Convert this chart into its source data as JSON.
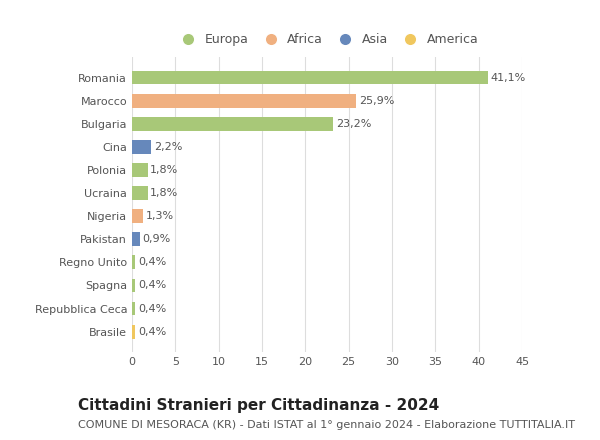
{
  "categories": [
    "Brasile",
    "Repubblica Ceca",
    "Spagna",
    "Regno Unito",
    "Pakistan",
    "Nigeria",
    "Ucraina",
    "Polonia",
    "Cina",
    "Bulgaria",
    "Marocco",
    "Romania"
  ],
  "values": [
    0.4,
    0.4,
    0.4,
    0.4,
    0.9,
    1.3,
    1.8,
    1.8,
    2.2,
    23.2,
    25.9,
    41.1
  ],
  "labels": [
    "0,4%",
    "0,4%",
    "0,4%",
    "0,4%",
    "0,9%",
    "1,3%",
    "1,8%",
    "1,8%",
    "2,2%",
    "23,2%",
    "25,9%",
    "41,1%"
  ],
  "colors": [
    "#f0c75e",
    "#a8c878",
    "#a8c878",
    "#a8c878",
    "#6688bb",
    "#f0b080",
    "#a8c878",
    "#a8c878",
    "#6688bb",
    "#a8c878",
    "#f0b080",
    "#a8c878"
  ],
  "continent": [
    "America",
    "Europa",
    "Europa",
    "Europa",
    "Asia",
    "Africa",
    "Europa",
    "Europa",
    "Asia",
    "Europa",
    "Africa",
    "Europa"
  ],
  "legend_labels": [
    "Europa",
    "Africa",
    "Asia",
    "America"
  ],
  "legend_colors": [
    "#a8c878",
    "#f0b080",
    "#6688bb",
    "#f0c75e"
  ],
  "title": "Cittadini Stranieri per Cittadinanza - 2024",
  "subtitle": "COMUNE DI MESORACA (KR) - Dati ISTAT al 1° gennaio 2024 - Elaborazione TUTTITALIA.IT",
  "xlim": [
    0,
    45
  ],
  "xticks": [
    0,
    5,
    10,
    15,
    20,
    25,
    30,
    35,
    40,
    45
  ],
  "background_color": "#ffffff",
  "grid_color": "#dddddd",
  "bar_height": 0.6,
  "title_fontsize": 11,
  "subtitle_fontsize": 8,
  "label_fontsize": 8,
  "tick_fontsize": 8,
  "legend_fontsize": 9
}
